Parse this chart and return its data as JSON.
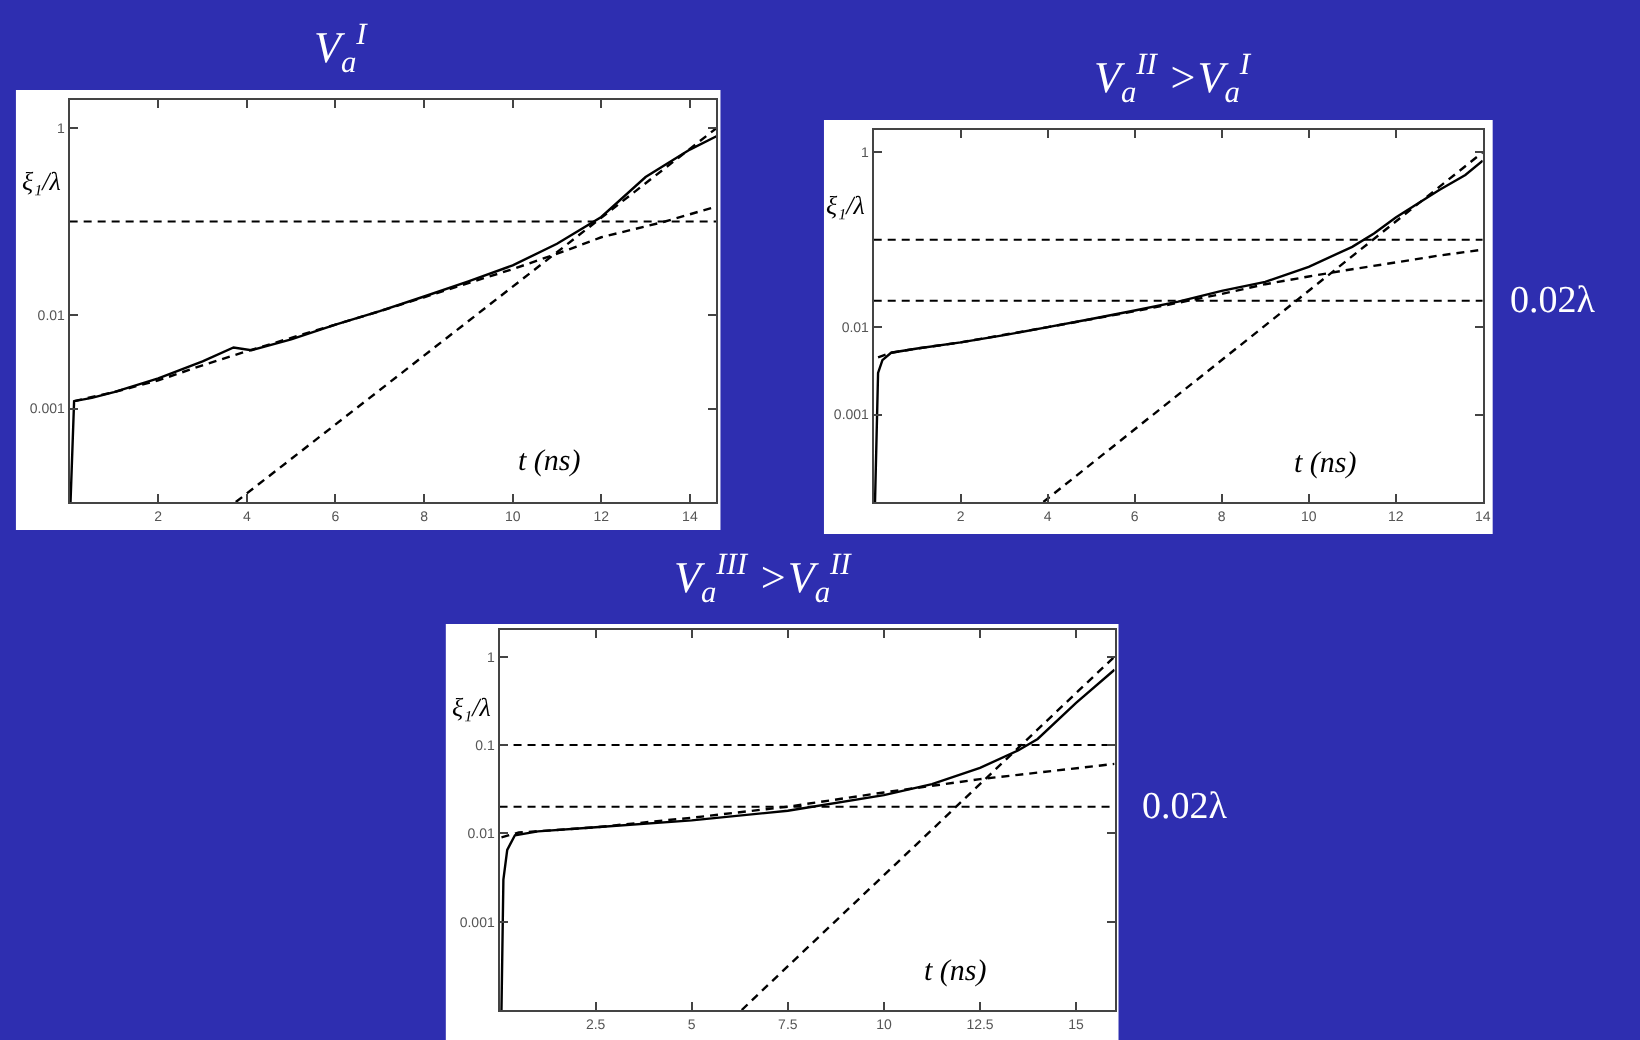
{
  "chart_data": [
    {
      "type": "line",
      "title": "V$_{a}$$^{I}$",
      "xlabel": "t (ns)",
      "ylabel": "ξ₁/λ",
      "log": "y",
      "xlim": [
        0,
        14.6
      ],
      "xticks": [
        2,
        4,
        6,
        8,
        10,
        12,
        14
      ],
      "ylim": [
        0.0001,
        2
      ],
      "yticks": [
        0.001,
        0.01,
        1
      ],
      "series": [
        {
          "color": "#000000",
          "line_style": "solid",
          "x": [
            0.02,
            0.1,
            0.5,
            1,
            2,
            3,
            3.7,
            4.1,
            5,
            6,
            7,
            8,
            9,
            10,
            11,
            12,
            13,
            14,
            14.6
          ],
          "values": [
            0.0001,
            0.0012,
            0.0013,
            0.0015,
            0.0021,
            0.0032,
            0.0045,
            0.0042,
            0.0055,
            0.0079,
            0.011,
            0.0158,
            0.023,
            0.034,
            0.058,
            0.112,
            0.3,
            0.59,
            0.82
          ]
        },
        {
          "color": "#000000",
          "line_style": "dashed",
          "x": [
            0.1,
            1,
            2,
            3,
            4,
            5,
            6,
            7,
            8,
            9,
            10,
            11.2,
            12,
            13.4,
            14.6
          ],
          "values": [
            0.0012,
            0.0015,
            0.002,
            0.0029,
            0.0041,
            0.0057,
            0.0079,
            0.011,
            0.0155,
            0.022,
            0.031,
            0.049,
            0.068,
            0.099,
            0.145
          ]
        },
        {
          "color": "#000000",
          "line_style": "dashed",
          "x": [
            3.75,
            14.6
          ],
          "values": [
            0.0001,
            1
          ]
        }
      ],
      "ref_lines": [
        {
          "axis": "y",
          "value": 0.1,
          "color": "#000000",
          "line_style": "dashed"
        }
      ]
    },
    {
      "type": "line",
      "title": "V$_{a}$$^{II}$ >V$_{a}$$^{I}$",
      "xlabel": "t (ns)",
      "ylabel": "ξ₁/λ",
      "log": "y",
      "xlim": [
        0,
        14
      ],
      "xticks": [
        2,
        4,
        6,
        8,
        10,
        12,
        14
      ],
      "ylim": [
        0.0001,
        1.8
      ],
      "yticks": [
        0.001,
        0.01,
        1
      ],
      "series": [
        {
          "color": "#000000",
          "line_style": "solid",
          "x": [
            0.03,
            0.1,
            0.2,
            0.4,
            1,
            2,
            3,
            4,
            5,
            6,
            7,
            8,
            9,
            10,
            11,
            11.5,
            12,
            13,
            13.6,
            14
          ],
          "values": [
            0.0001,
            0.003,
            0.0042,
            0.0051,
            0.0057,
            0.0067,
            0.0081,
            0.01,
            0.0124,
            0.0155,
            0.0196,
            0.026,
            0.033,
            0.049,
            0.083,
            0.118,
            0.18,
            0.37,
            0.55,
            0.8
          ]
        },
        {
          "color": "#000000",
          "line_style": "dashed",
          "x": [
            0.1,
            0.4,
            1,
            2,
            4,
            6,
            7,
            8,
            9,
            10,
            11,
            12,
            13,
            14
          ],
          "values": [
            0.0045,
            0.0051,
            0.0057,
            0.0067,
            0.01,
            0.0152,
            0.019,
            0.024,
            0.031,
            0.038,
            0.046,
            0.055,
            0.066,
            0.077
          ]
        },
        {
          "color": "#000000",
          "line_style": "dashed",
          "x": [
            3.9,
            14
          ],
          "values": [
            0.0001,
            1
          ]
        }
      ],
      "ref_lines": [
        {
          "axis": "y",
          "value": 0.1,
          "color": "#000000",
          "line_style": "dashed"
        },
        {
          "axis": "y",
          "value": 0.02,
          "label": "0.02λ",
          "color": "#000000",
          "line_style": "dashed"
        }
      ]
    },
    {
      "type": "line",
      "title": "V$_{a}$$^{III}$ >V$_{a}$$^{II}$",
      "xlabel": "t (ns)",
      "ylabel": "ξ₁/λ",
      "log": "y",
      "xlim": [
        0,
        16
      ],
      "xticks": [
        2.5,
        5,
        7.5,
        10,
        12.5,
        15
      ],
      "ylim": [
        0.0001,
        2
      ],
      "yticks": [
        0.001,
        0.01,
        0.1,
        1
      ],
      "series": [
        {
          "color": "#000000",
          "line_style": "solid",
          "x": [
            0.05,
            0.1,
            0.2,
            0.4,
            1,
            2.5,
            5,
            7.5,
            10,
            11.25,
            12.5,
            13.5,
            14,
            15,
            16
          ],
          "values": [
            0.0001,
            0.003,
            0.0065,
            0.0095,
            0.0105,
            0.0117,
            0.014,
            0.018,
            0.027,
            0.036,
            0.055,
            0.087,
            0.117,
            0.3,
            0.71
          ]
        },
        {
          "color": "#000000",
          "line_style": "dashed",
          "x": [
            0.05,
            0.5,
            2.5,
            5,
            7.5,
            10,
            12.5,
            16
          ],
          "values": [
            0.009,
            0.0102,
            0.0117,
            0.015,
            0.02,
            0.029,
            0.041,
            0.061
          ]
        },
        {
          "color": "#000000",
          "line_style": "dashed",
          "x": [
            6.3,
            16
          ],
          "values": [
            0.0001,
            1
          ]
        }
      ],
      "ref_lines": [
        {
          "axis": "y",
          "value": 0.1,
          "color": "#000000",
          "line_style": "dashed"
        },
        {
          "axis": "y",
          "value": 0.02,
          "label": "0.02λ",
          "color": "#000000",
          "line_style": "dashed"
        }
      ]
    }
  ]
}
